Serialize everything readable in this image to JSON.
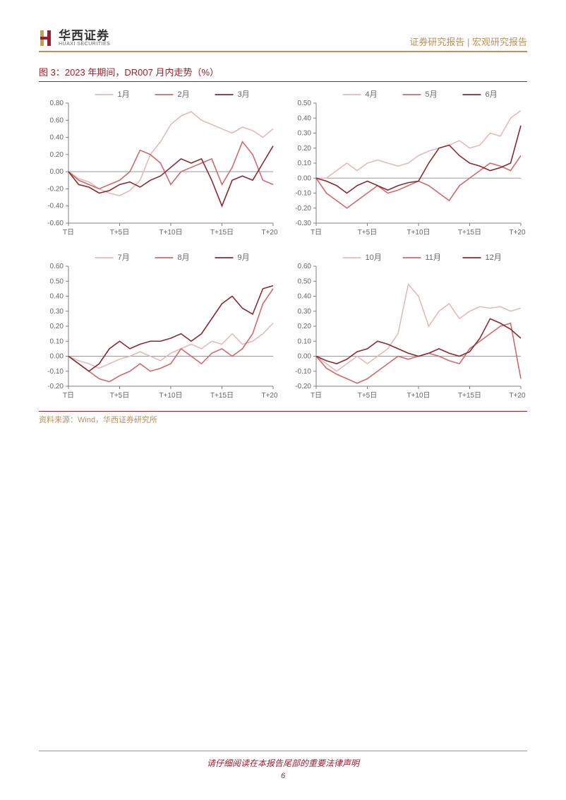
{
  "header": {
    "company_cn": "华西证券",
    "company_en": "HUAXI SECURITIES",
    "right_a": "证券研究报告",
    "right_b": "宏观研究报告"
  },
  "figure_title": "图 3：2023 年期间，DR007 月内走势（%）",
  "source": "资料来源：Wind，华西证券研究所",
  "footer_text": "请仔细阅读在本报告尾部的重要法律声明",
  "page_number": "6",
  "x_ticks": [
    "T日",
    "T+5日",
    "T+10日",
    "T+15日",
    "T+20日"
  ],
  "colors": {
    "s1": "#e8b8b8",
    "s2": "#d1696d",
    "s3": "#8b2930",
    "axis": "#808080",
    "tick_text": "#666666",
    "legend_text": "#666666",
    "zero_line": "#999999"
  },
  "font": {
    "tick": 10,
    "legend": 11
  },
  "charts": [
    {
      "legend": [
        "1月",
        "2月",
        "3月"
      ],
      "ylim": [
        -0.6,
        0.8
      ],
      "ystep": 0.2,
      "series": [
        [
          0.0,
          -0.08,
          -0.12,
          -0.2,
          -0.25,
          -0.28,
          -0.22,
          -0.1,
          0.2,
          0.35,
          0.55,
          0.65,
          0.7,
          0.6,
          0.55,
          0.5,
          0.45,
          0.52,
          0.48,
          0.4,
          0.5
        ],
        [
          0.0,
          -0.1,
          -0.15,
          -0.2,
          -0.15,
          -0.1,
          0.0,
          0.25,
          0.2,
          0.1,
          -0.15,
          0.0,
          0.05,
          0.1,
          0.15,
          -0.15,
          0.05,
          0.35,
          0.2,
          -0.1,
          -0.15
        ],
        [
          0.0,
          -0.15,
          -0.18,
          -0.25,
          -0.22,
          -0.15,
          -0.12,
          -0.18,
          -0.1,
          -0.05,
          0.05,
          0.15,
          0.1,
          0.15,
          -0.1,
          -0.4,
          -0.1,
          -0.05,
          -0.1,
          0.1,
          0.3
        ]
      ]
    },
    {
      "legend": [
        "4月",
        "5月",
        "6月"
      ],
      "ylim": [
        -0.3,
        0.5
      ],
      "ystep": 0.1,
      "series": [
        [
          0.0,
          0.0,
          0.05,
          0.1,
          0.05,
          0.1,
          0.12,
          0.1,
          0.08,
          0.1,
          0.15,
          0.18,
          0.2,
          0.22,
          0.25,
          0.2,
          0.22,
          0.3,
          0.28,
          0.4,
          0.45
        ],
        [
          0.0,
          -0.1,
          -0.15,
          -0.2,
          -0.15,
          -0.1,
          -0.05,
          -0.1,
          -0.08,
          -0.05,
          -0.02,
          -0.05,
          -0.1,
          -0.15,
          -0.05,
          0.0,
          0.05,
          0.1,
          0.08,
          0.05,
          0.15
        ],
        [
          0.0,
          -0.02,
          -0.05,
          -0.1,
          -0.05,
          -0.02,
          -0.05,
          -0.08,
          -0.05,
          -0.03,
          -0.02,
          0.1,
          0.2,
          0.22,
          0.15,
          0.1,
          0.08,
          0.05,
          0.07,
          0.1,
          0.35
        ]
      ]
    },
    {
      "legend": [
        "7月",
        "8月",
        "9月"
      ],
      "ylim": [
        -0.2,
        0.6
      ],
      "ystep": 0.1,
      "series": [
        [
          0.0,
          -0.03,
          -0.05,
          -0.08,
          -0.05,
          -0.02,
          0.0,
          0.03,
          0.0,
          -0.03,
          0.02,
          0.05,
          0.08,
          0.05,
          0.1,
          0.08,
          0.15,
          0.08,
          0.1,
          0.15,
          0.22
        ],
        [
          0.0,
          -0.05,
          -0.1,
          -0.15,
          -0.17,
          -0.13,
          -0.1,
          -0.05,
          -0.1,
          -0.08,
          -0.05,
          0.05,
          0.0,
          -0.05,
          0.02,
          0.05,
          0.0,
          0.05,
          0.15,
          0.35,
          0.45
        ],
        [
          0.0,
          -0.05,
          -0.1,
          -0.05,
          0.05,
          0.1,
          0.05,
          0.08,
          0.1,
          0.1,
          0.12,
          0.15,
          0.1,
          0.15,
          0.25,
          0.35,
          0.4,
          0.32,
          0.28,
          0.45,
          0.47
        ]
      ]
    },
    {
      "legend": [
        "10月",
        "11月",
        "12月"
      ],
      "ylim": [
        -0.2,
        0.6
      ],
      "ystep": 0.1,
      "series": [
        [
          0.0,
          -0.05,
          -0.1,
          -0.05,
          0.0,
          -0.05,
          0.0,
          0.05,
          0.15,
          0.48,
          0.4,
          0.2,
          0.3,
          0.35,
          0.25,
          0.3,
          0.33,
          0.32,
          0.33,
          0.3,
          0.32
        ],
        [
          0.0,
          -0.08,
          -0.12,
          -0.15,
          -0.18,
          -0.15,
          -0.1,
          -0.05,
          0.0,
          -0.02,
          0.0,
          0.02,
          0.0,
          -0.03,
          -0.05,
          0.05,
          0.1,
          0.15,
          0.2,
          0.22,
          -0.15
        ],
        [
          0.0,
          -0.03,
          -0.05,
          -0.02,
          0.03,
          0.05,
          0.1,
          0.08,
          0.05,
          0.02,
          0.0,
          0.02,
          0.05,
          0.02,
          0.0,
          0.03,
          0.12,
          0.25,
          0.22,
          0.18,
          0.12
        ]
      ]
    }
  ]
}
